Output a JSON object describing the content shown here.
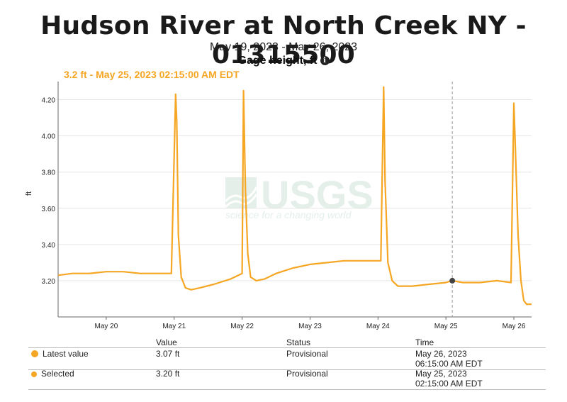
{
  "header": {
    "title": "Hudson River at North Creek NY - 01315500",
    "date_range": "May 19, 2023 - May 26, 2023",
    "parameter": "Gage height, ft",
    "info_icon": "info-icon",
    "selected_readout": "3.2 ft - May 25, 2023 02:15:00 AM EDT"
  },
  "watermark": {
    "logo": "USGS",
    "tagline": "science for a changing world"
  },
  "colors": {
    "series": "#f5a623",
    "axis": "#666666",
    "grid": "#e6e6e6"
  },
  "chart_data": {
    "type": "line",
    "title": "Hudson River at North Creek NY - 01315500",
    "subtitle": "May 19, 2023 - May 26, 2023",
    "xlabel": "",
    "ylabel": "ft",
    "xlim": [
      "2023-05-19T07:00",
      "2023-05-26T06:15"
    ],
    "ylim": [
      3.0,
      4.3
    ],
    "xticks": [
      "May 20",
      "May 21",
      "May 22",
      "May 23",
      "May 24",
      "May 25",
      "May 26"
    ],
    "xtick_dates": [
      "2023-05-20T00:00",
      "2023-05-21T00:00",
      "2023-05-22T00:00",
      "2023-05-23T00:00",
      "2023-05-24T00:00",
      "2023-05-25T00:00",
      "2023-05-26T00:00"
    ],
    "yticks": [
      3.2,
      3.4,
      3.6,
      3.8,
      4.0,
      4.2
    ],
    "ytick_labels": [
      "3.20",
      "3.40",
      "3.60",
      "3.80",
      "4.00",
      "4.20"
    ],
    "grid": "horizontal",
    "series": [
      {
        "x": [
          "2023-05-19T07:00",
          "2023-05-19T12:00",
          "2023-05-19T18:00",
          "2023-05-20T00:00",
          "2023-05-20T06:00",
          "2023-05-20T12:00",
          "2023-05-20T18:00",
          "2023-05-20T23:00",
          "2023-05-21T00:30",
          "2023-05-21T00:55",
          "2023-05-21T01:30",
          "2023-05-21T02:30",
          "2023-05-21T04:00",
          "2023-05-21T06:00",
          "2023-05-21T09:00",
          "2023-05-21T14:00",
          "2023-05-21T20:00",
          "2023-05-22T00:00",
          "2023-05-22T00:30",
          "2023-05-22T01:10",
          "2023-05-22T02:00",
          "2023-05-22T03:00",
          "2023-05-22T05:00",
          "2023-05-22T08:00",
          "2023-05-22T12:00",
          "2023-05-22T18:00",
          "2023-05-23T00:00",
          "2023-05-23T06:00",
          "2023-05-23T12:00",
          "2023-05-23T18:00",
          "2023-05-24T01:00",
          "2023-05-24T02:00",
          "2023-05-24T02:30",
          "2023-05-24T03:30",
          "2023-05-24T05:00",
          "2023-05-24T07:00",
          "2023-05-24T12:00",
          "2023-05-24T18:00",
          "2023-05-25T00:00",
          "2023-05-25T02:15",
          "2023-05-25T06:00",
          "2023-05-25T12:00",
          "2023-05-25T18:00",
          "2023-05-25T23:00",
          "2023-05-26T00:00",
          "2023-05-26T00:30",
          "2023-05-26T01:30",
          "2023-05-26T02:30",
          "2023-05-26T03:30",
          "2023-05-26T04:30",
          "2023-05-26T06:15"
        ],
        "y": [
          3.23,
          3.24,
          3.24,
          3.25,
          3.25,
          3.24,
          3.24,
          3.24,
          4.23,
          4.08,
          3.45,
          3.22,
          3.16,
          3.15,
          3.16,
          3.18,
          3.21,
          3.24,
          4.25,
          3.7,
          3.35,
          3.22,
          3.2,
          3.21,
          3.24,
          3.27,
          3.29,
          3.3,
          3.31,
          3.31,
          3.31,
          4.27,
          3.75,
          3.3,
          3.2,
          3.17,
          3.17,
          3.18,
          3.19,
          3.2,
          3.19,
          3.19,
          3.2,
          3.19,
          4.18,
          3.95,
          3.45,
          3.2,
          3.09,
          3.07,
          3.07
        ]
      }
    ],
    "selected_point": {
      "x": "2023-05-25T02:15",
      "y": 3.2
    }
  },
  "legend": {
    "columns": [
      "Value",
      "Status",
      "Time"
    ],
    "rows": [
      {
        "label": "Latest value",
        "value": "3.07 ft",
        "status": "Provisional",
        "date": "May 26, 2023",
        "time": "06:15:00 AM EDT"
      },
      {
        "label": "Selected",
        "value": "3.20 ft",
        "status": "Provisional",
        "date": "May 25, 2023",
        "time": "02:15:00 AM EDT"
      }
    ]
  }
}
